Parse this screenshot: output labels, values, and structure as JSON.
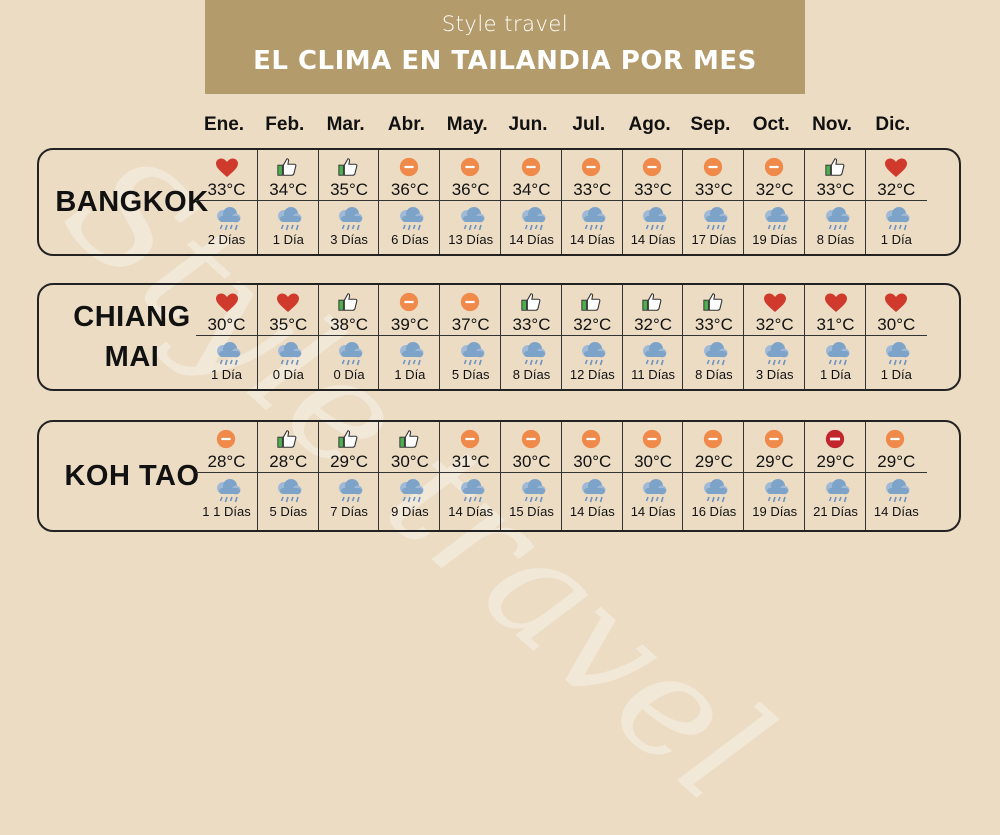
{
  "header": {
    "brand": "Style travel",
    "title": "EL CLIMA EN TAILANDIA POR MES"
  },
  "watermark": "Style travel",
  "months": [
    "Ene.",
    "Feb.",
    "Mar.",
    "Abr.",
    "May.",
    "Jun.",
    "Jul.",
    "Ago.",
    "Sep.",
    "Oct.",
    "Nov.",
    "Dic."
  ],
  "colors": {
    "background": "#ecdcc4",
    "header": "#b49b6c",
    "heart": "#d03a2c",
    "neutral": "#f08a4b",
    "bad": "#c0262b",
    "thumb": "#4caf50",
    "cloud": "#7ea3c9"
  },
  "cities": [
    {
      "name_lines": [
        "BANGKOK"
      ],
      "entries": [
        {
          "icon": "heart-icon",
          "temp": "33°C",
          "rain": "2 Días"
        },
        {
          "icon": "thumbs-up-icon",
          "temp": "34°C",
          "rain": "1 Día"
        },
        {
          "icon": "thumbs-up-icon",
          "temp": "35°C",
          "rain": "3 Días"
        },
        {
          "icon": "neutral-icon",
          "temp": "36°C",
          "rain": "6 Días"
        },
        {
          "icon": "neutral-icon",
          "temp": "36°C",
          "rain": "13 Días"
        },
        {
          "icon": "neutral-icon",
          "temp": "34°C",
          "rain": "14 Días"
        },
        {
          "icon": "neutral-icon",
          "temp": "33°C",
          "rain": "14 Días"
        },
        {
          "icon": "neutral-icon",
          "temp": "33°C",
          "rain": "14 Días"
        },
        {
          "icon": "neutral-icon",
          "temp": "33°C",
          "rain": "17 Días"
        },
        {
          "icon": "neutral-icon",
          "temp": "32°C",
          "rain": "19 Días"
        },
        {
          "icon": "thumbs-up-icon",
          "temp": "33°C",
          "rain": "8 Días"
        },
        {
          "icon": "heart-icon",
          "temp": "32°C",
          "rain": "1 Día"
        }
      ]
    },
    {
      "name_lines": [
        "CHIANG",
        "MAI"
      ],
      "entries": [
        {
          "icon": "heart-icon",
          "temp": "30°C",
          "rain": "1 Día"
        },
        {
          "icon": "heart-icon",
          "temp": "35°C",
          "rain": "0 Día"
        },
        {
          "icon": "thumbs-up-icon",
          "temp": "38°C",
          "rain": "0 Día"
        },
        {
          "icon": "neutral-icon",
          "temp": "39°C",
          "rain": "1 Día"
        },
        {
          "icon": "neutral-icon",
          "temp": "37°C",
          "rain": "5 Días"
        },
        {
          "icon": "thumbs-up-icon",
          "temp": "33°C",
          "rain": "8 Días"
        },
        {
          "icon": "thumbs-up-icon",
          "temp": "32°C",
          "rain": "12 Días"
        },
        {
          "icon": "thumbs-up-icon",
          "temp": "32°C",
          "rain": "11 Días"
        },
        {
          "icon": "thumbs-up-icon",
          "temp": "33°C",
          "rain": "8 Días"
        },
        {
          "icon": "heart-icon",
          "temp": "32°C",
          "rain": "3 Días"
        },
        {
          "icon": "heart-icon",
          "temp": "31°C",
          "rain": "1 Día"
        },
        {
          "icon": "heart-icon",
          "temp": "30°C",
          "rain": "1 Día"
        }
      ]
    },
    {
      "name_lines": [
        "KOH TAO"
      ],
      "entries": [
        {
          "icon": "neutral-icon",
          "temp": "28°C",
          "rain": "1 1 Días"
        },
        {
          "icon": "thumbs-up-icon",
          "temp": "28°C",
          "rain": "5 Días"
        },
        {
          "icon": "thumbs-up-icon",
          "temp": "29°C",
          "rain": "7 Días"
        },
        {
          "icon": "thumbs-up-icon",
          "temp": "30°C",
          "rain": "9 Días"
        },
        {
          "icon": "neutral-icon",
          "temp": "31°C",
          "rain": "14 Días"
        },
        {
          "icon": "neutral-icon",
          "temp": "30°C",
          "rain": "15 Días"
        },
        {
          "icon": "neutral-icon",
          "temp": "30°C",
          "rain": "14 Días"
        },
        {
          "icon": "neutral-icon",
          "temp": "30°C",
          "rain": "14 Días"
        },
        {
          "icon": "neutral-icon",
          "temp": "29°C",
          "rain": "16 Días"
        },
        {
          "icon": "neutral-icon",
          "temp": "29°C",
          "rain": "19 Días"
        },
        {
          "icon": "bad-icon",
          "temp": "29°C",
          "rain": "21 Días"
        },
        {
          "icon": "neutral-icon",
          "temp": "29°C",
          "rain": "14 Días"
        }
      ]
    }
  ]
}
